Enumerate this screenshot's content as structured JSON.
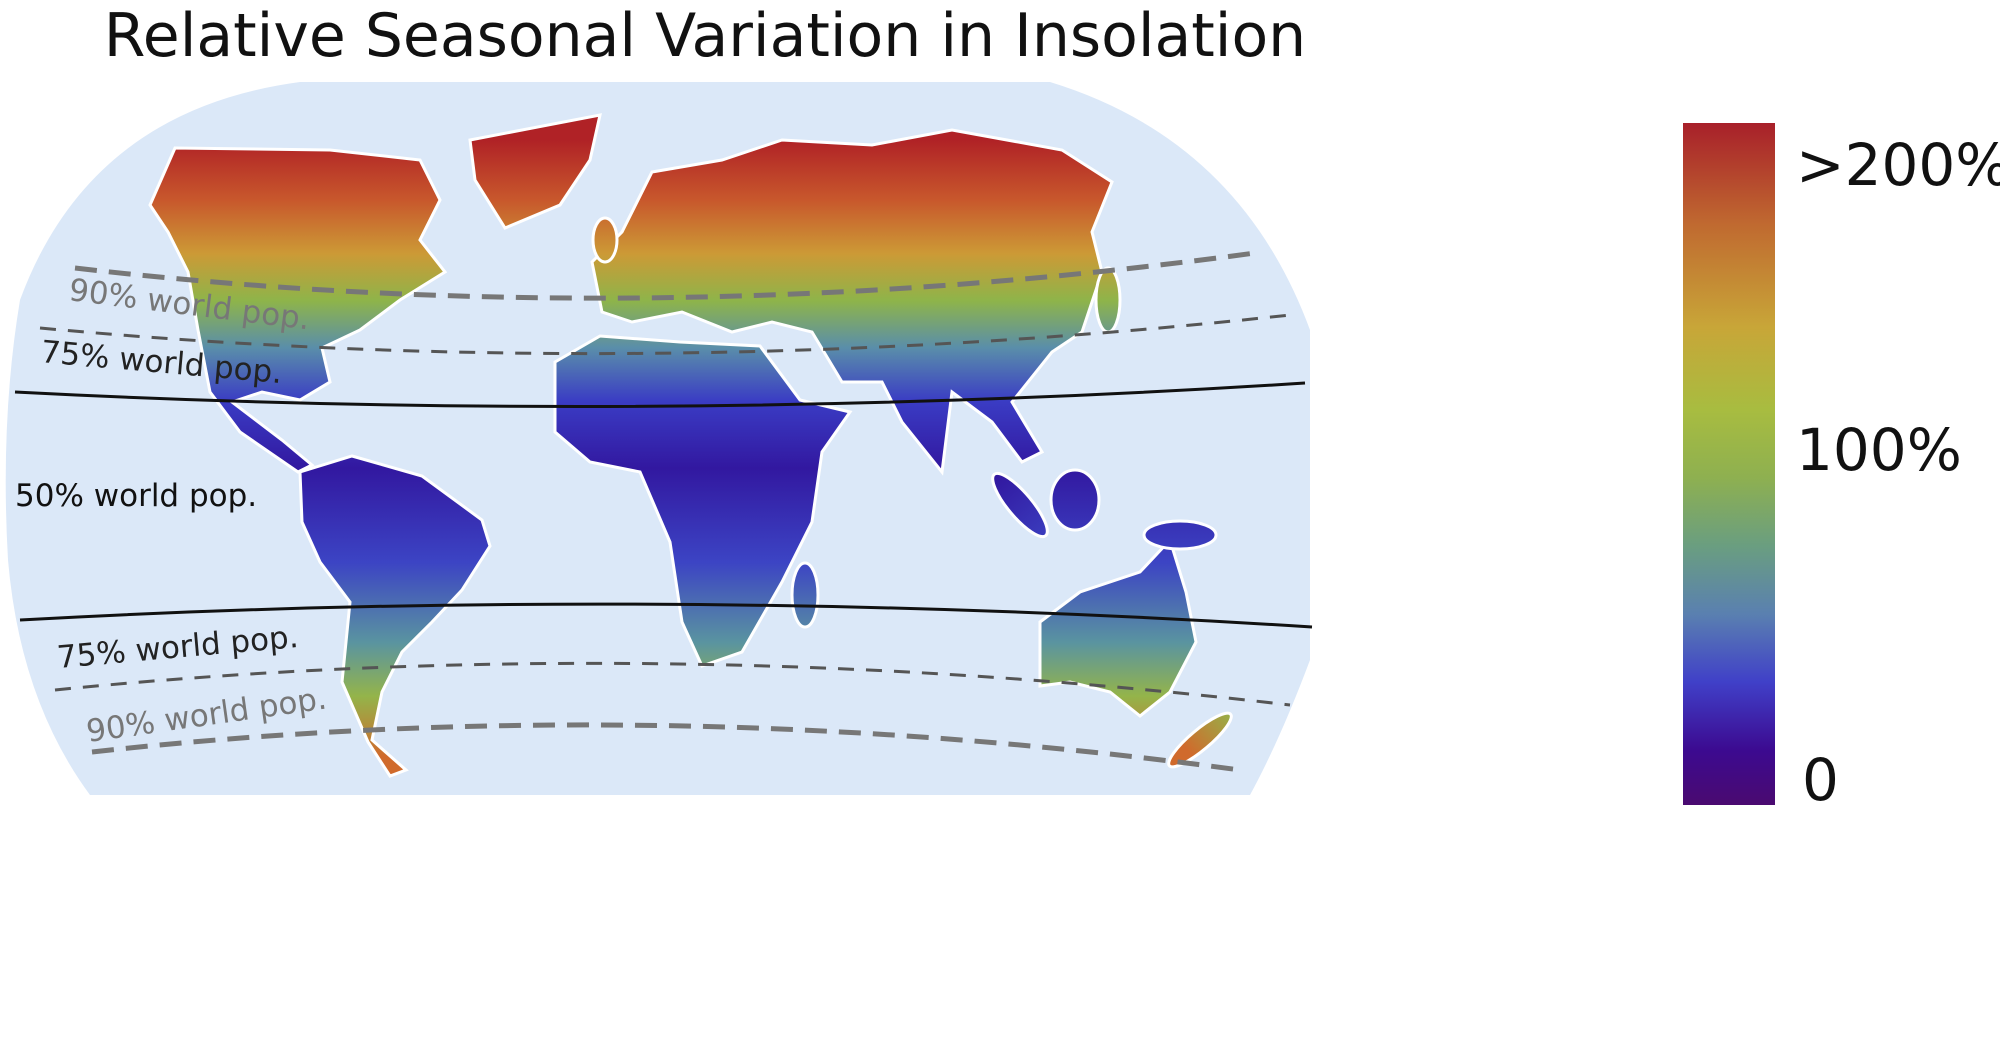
{
  "title": "Relative Seasonal Variation in Insolation",
  "colorbar": {
    "labels": {
      "max": ">200%",
      "mid": "100%",
      "min": "0"
    },
    "colors": [
      "#a8202a",
      "#c06a30",
      "#c8a638",
      "#9ebc48",
      "#6a9e80",
      "#5a80b0",
      "#4040c8",
      "#3c0a90",
      "#4a0a70"
    ]
  },
  "bands": [
    {
      "label": "90% world pop.",
      "hemisphere": "north",
      "style": "thick-gray-dashed"
    },
    {
      "label": "75% world pop.",
      "hemisphere": "north",
      "style": "dark-dashed"
    },
    {
      "label": "50% world pop.",
      "hemisphere": "equatorial",
      "style": "solid-black"
    },
    {
      "label": "75% world pop.",
      "hemisphere": "south",
      "style": "dark-dashed"
    },
    {
      "label": "90% world pop.",
      "hemisphere": "south",
      "style": "thick-gray-dashed"
    }
  ],
  "colors": {
    "ocean": "#dbe8f8",
    "land_outline": "#ffffff",
    "gray_line": "#777777",
    "dark_line": "#555555"
  }
}
